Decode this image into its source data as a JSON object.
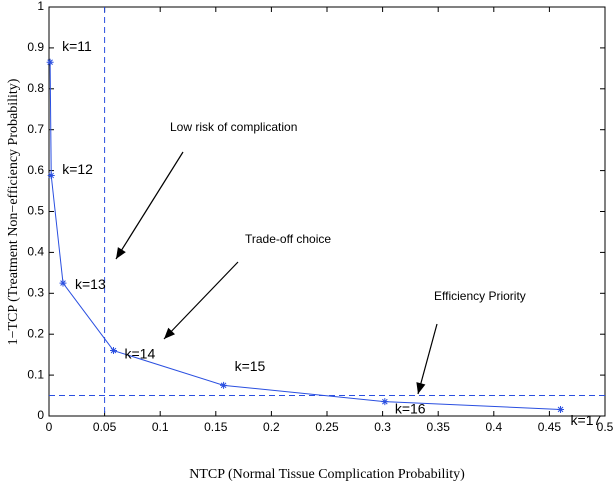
{
  "chart_data": {
    "type": "line",
    "x_label": "NTCP (Normal Tissue Complication Probability)",
    "y_label": "1−TCP (Treatment Non−efficiency Probability)",
    "x": [
      0.001,
      0.002,
      0.0126,
      0.058,
      0.157,
      0.302,
      0.46
    ],
    "series": [
      {
        "color": "#2a4fe0",
        "values": [
          0.865,
          0.588,
          0.325,
          0.16,
          0.075,
          0.035,
          0.016
        ],
        "point_labels": [
          "k=11",
          "k=12",
          "k=13",
          "k=14",
          "k=15",
          "k=16",
          "k=17"
        ]
      }
    ],
    "vline": 0.05,
    "hline": 0.05,
    "ref_color": "#2a4fe0",
    "annotations": [
      "Low risk of complication",
      "Trade-off choice",
      "Efficiency Priority"
    ],
    "xlim": [
      0,
      0.5
    ],
    "ylim": [
      0,
      1
    ],
    "xticks": [
      0,
      0.05,
      0.1,
      0.15,
      0.2,
      0.25,
      0.3,
      0.35,
      0.4,
      0.45,
      0.5
    ],
    "yticks": [
      0,
      0.1,
      0.2,
      0.3,
      0.4,
      0.5,
      0.6,
      0.7,
      0.8,
      0.9,
      1
    ]
  }
}
